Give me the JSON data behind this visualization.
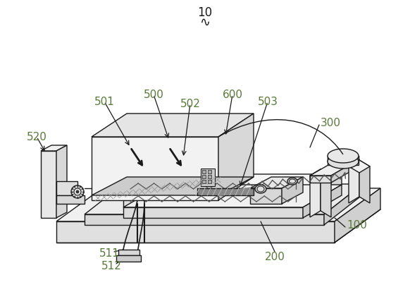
{
  "background_color": "#ffffff",
  "line_color": "#1a1a1a",
  "lw": 1.0,
  "fig_width": 5.82,
  "fig_height": 4.35,
  "dpi": 100,
  "label_color": "#4a7a4a",
  "label_fs": 11,
  "arrow_color": "#1a1a1a"
}
